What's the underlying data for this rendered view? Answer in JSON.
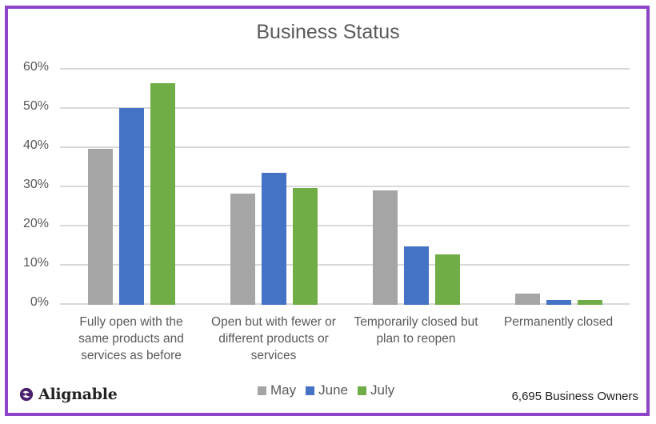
{
  "chart_data": {
    "type": "bar",
    "title": "Business Status",
    "xlabel": "",
    "ylabel": "",
    "ylim": [
      0,
      60
    ],
    "yticks": [
      "0%",
      "10%",
      "20%",
      "30%",
      "40%",
      "50%",
      "60%"
    ],
    "grid": true,
    "legend_position": "bottom",
    "categories": [
      "Fully open with the same products and services as before",
      "Open but with fewer or different products or services",
      "Temporarily closed but plan to reopen",
      "Permanently closed"
    ],
    "series": [
      {
        "name": "May",
        "color": "#a5a5a5",
        "values": [
          39.7,
          28.3,
          29.1,
          2.9
        ]
      },
      {
        "name": "June",
        "color": "#4472c4",
        "values": [
          50.2,
          33.6,
          14.9,
          1.3
        ]
      },
      {
        "name": "July",
        "color": "#70ad47",
        "values": [
          56.5,
          29.9,
          12.8,
          1.3
        ]
      }
    ]
  },
  "labels": {
    "title": "Business Status",
    "categories": [
      [
        "Fully open with the",
        "same products and",
        "services as before"
      ],
      [
        "Open but with fewer or",
        "different products or",
        "services"
      ],
      [
        "Temporarily closed but",
        "plan to reopen"
      ],
      [
        "Permanently closed"
      ]
    ],
    "legend": [
      "May",
      "June",
      "July"
    ]
  },
  "brand": {
    "name": "Alignable",
    "color": "#4a1f6e",
    "frame_color": "#8e44c8"
  },
  "footnote": "6,695 Business Owners"
}
